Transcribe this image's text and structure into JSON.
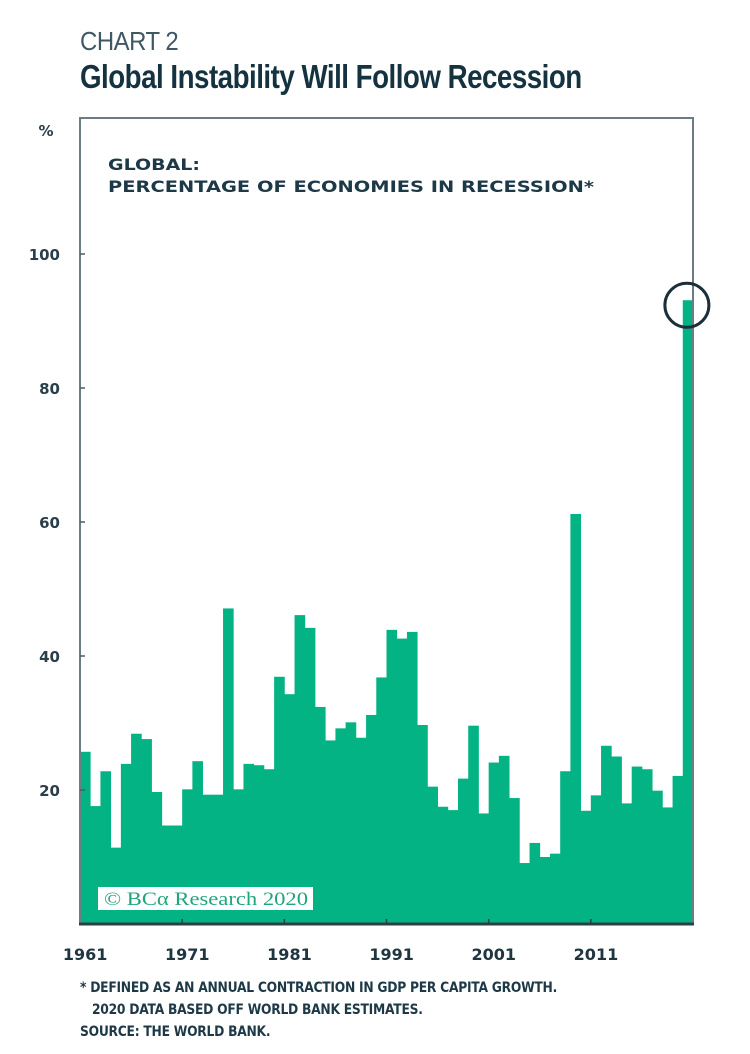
{
  "header": {
    "chart_label": "CHART 2",
    "title": "Global Instability Will Follow Recession"
  },
  "footnotes": {
    "line1": "* DEFINED AS AN ANNUAL CONTRACTION IN GDP PER CAPITA GROWTH.",
    "line2": "2020 DATA BASED OFF WORLD BANK ESTIMATES.",
    "line3": "SOURCE: THE WORLD BANK."
  },
  "watermark": "© BCα Research 2020",
  "colors": {
    "bar": "#03b384",
    "axis": "#5d6f76",
    "text": "#1d3947",
    "highlight_circle": "#1b2f3a"
  },
  "chart_data": {
    "type": "bar",
    "title": "GLOBAL:",
    "subtitle": "PERCENTAGE OF ECONOMIES IN RECESSION*",
    "xlabel": "",
    "ylabel": "%",
    "ylim": [
      0,
      118
    ],
    "yticks": [
      20,
      40,
      60,
      80,
      100
    ],
    "xtick_labels": [
      "1961",
      "1971",
      "1981",
      "1991",
      "2001",
      "2011"
    ],
    "grid": false,
    "legend": "none",
    "highlight": {
      "category": "2020",
      "shape": "circle"
    },
    "categories": [
      "1961",
      "1962",
      "1963",
      "1964",
      "1965",
      "1966",
      "1967",
      "1968",
      "1969",
      "1970",
      "1971",
      "1972",
      "1973",
      "1974",
      "1975",
      "1976",
      "1977",
      "1978",
      "1979",
      "1980",
      "1981",
      "1982",
      "1983",
      "1984",
      "1985",
      "1986",
      "1987",
      "1988",
      "1989",
      "1990",
      "1991",
      "1992",
      "1993",
      "1994",
      "1995",
      "1996",
      "1997",
      "1998",
      "1999",
      "2000",
      "2001",
      "2002",
      "2003",
      "2004",
      "2005",
      "2006",
      "2007",
      "2008",
      "2009",
      "2010",
      "2011",
      "2012",
      "2013",
      "2014",
      "2015",
      "2016",
      "2017",
      "2018",
      "2019",
      "2020"
    ],
    "values": [
      25.7,
      17.6,
      22.8,
      11.4,
      23.9,
      28.4,
      27.6,
      19.7,
      14.7,
      14.7,
      20.1,
      24.3,
      19.3,
      19.3,
      47.1,
      20.1,
      23.9,
      23.7,
      23.1,
      36.9,
      34.3,
      46.1,
      44.2,
      32.4,
      27.4,
      29.2,
      30.1,
      27.8,
      31.2,
      36.8,
      43.9,
      42.6,
      43.6,
      29.7,
      20.5,
      17.5,
      17.0,
      21.7,
      29.6,
      16.5,
      24.1,
      25.1,
      18.8,
      9.1,
      12.1,
      10.0,
      10.5,
      22.8,
      61.2,
      16.9,
      19.2,
      26.6,
      25.0,
      18.0,
      23.5,
      23.1,
      19.9,
      17.4,
      22.1,
      93.1
    ]
  }
}
